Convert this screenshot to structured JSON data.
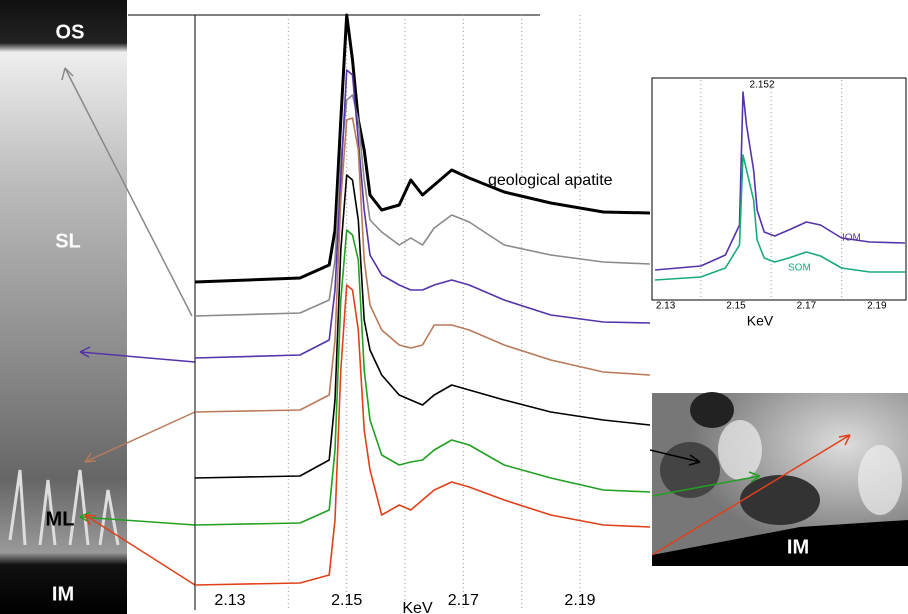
{
  "chart_data": [
    {
      "type": "line",
      "x_label": "KeV",
      "x": [
        2.124,
        2.142,
        2.147,
        2.148,
        2.149,
        2.15,
        2.151,
        2.152,
        2.153,
        2.154,
        2.156,
        2.159,
        2.161,
        2.163,
        2.165,
        2.168,
        2.171,
        2.177,
        2.185,
        2.194,
        2.202
      ],
      "xlim": [
        2.124,
        2.202
      ],
      "xticks": [
        2.13,
        2.15,
        2.17,
        2.19
      ],
      "grid_x": [
        2.14,
        2.15,
        2.16,
        2.17,
        2.18,
        2.19
      ],
      "ylim": [
        0,
        595
      ],
      "series": [
        {
          "name": "geological apatite",
          "color": "#000000",
          "values": [
            328,
            332,
            345,
            380,
            490,
            595,
            550,
            490,
            460,
            415,
            400,
            405,
            430,
            415,
            425,
            440,
            432,
            418,
            407,
            398,
            397
          ]
        },
        {
          "color": "#8a8a8a",
          "values": [
            294,
            297,
            310,
            350,
            450,
            510,
            515,
            490,
            430,
            390,
            378,
            365,
            372,
            365,
            382,
            395,
            388,
            365,
            355,
            348,
            346
          ]
        },
        {
          "color": "#5533aa",
          "values": [
            252,
            255,
            270,
            320,
            430,
            540,
            535,
            470,
            400,
            355,
            335,
            325,
            320,
            320,
            325,
            330,
            325,
            310,
            295,
            288,
            287
          ]
        },
        {
          "color": "#b87a5a",
          "values": [
            198,
            200,
            215,
            270,
            410,
            490,
            492,
            460,
            350,
            305,
            280,
            265,
            262,
            265,
            285,
            285,
            280,
            265,
            250,
            238,
            235
          ]
        },
        {
          "color": "#000000",
          "values": [
            132,
            134,
            150,
            210,
            360,
            435,
            430,
            390,
            290,
            260,
            235,
            215,
            210,
            205,
            215,
            225,
            220,
            210,
            198,
            190,
            185
          ]
        },
        {
          "color": "#22a022",
          "values": [
            85,
            87,
            100,
            160,
            310,
            380,
            375,
            350,
            240,
            190,
            155,
            145,
            148,
            150,
            160,
            170,
            165,
            145,
            132,
            120,
            118
          ]
        },
        {
          "color": "#e0401a",
          "values": [
            25,
            27,
            35,
            90,
            240,
            325,
            320,
            280,
            180,
            140,
            95,
            105,
            100,
            110,
            120,
            128,
            123,
            110,
            95,
            85,
            83
          ]
        }
      ]
    },
    {
      "type": "line",
      "x_label": "KeV",
      "annotation": "2.152",
      "x": [
        2.127,
        2.14,
        2.147,
        2.151,
        2.152,
        2.153,
        2.155,
        2.156,
        2.158,
        2.161,
        2.165,
        2.17,
        2.174,
        2.18,
        2.188,
        2.198
      ],
      "xlim": [
        2.127,
        2.198
      ],
      "xticks": [
        2.13,
        2.15,
        2.17,
        2.19
      ],
      "grid_x": [
        2.14,
        2.16,
        2.18
      ],
      "ylim": [
        0,
        220
      ],
      "series": [
        {
          "name": "IOM",
          "color": "#5533aa",
          "values": [
            30,
            34,
            45,
            75,
            208,
            175,
            130,
            90,
            68,
            64,
            70,
            78,
            75,
            62,
            58,
            57
          ]
        },
        {
          "name": "SOM",
          "color": "#1aaa7a",
          "values": [
            20,
            23,
            32,
            55,
            145,
            130,
            100,
            60,
            42,
            38,
            42,
            48,
            44,
            32,
            28,
            28
          ]
        }
      ]
    }
  ],
  "image_labels": {
    "left": [
      "OS",
      "SL",
      "ML",
      "IM"
    ],
    "right": "IM"
  }
}
